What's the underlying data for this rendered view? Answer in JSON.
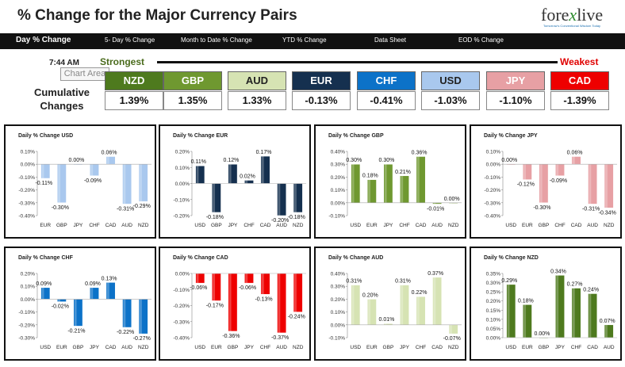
{
  "header": {
    "title": "% Change for the Major Currency Pairs",
    "logo_left": "fore",
    "logo_x": "x",
    "logo_right": "live",
    "logo_tagline": "Tomorrow's Conventional Wisdom Today"
  },
  "nav": {
    "items": [
      {
        "label": "Day % Change"
      },
      {
        "label": "5- Day % Change"
      },
      {
        "label": "Month to Date % Change"
      },
      {
        "label": "YTD % Change"
      },
      {
        "label": "Data Sheet"
      },
      {
        "label": "EOD % Change"
      }
    ]
  },
  "summary": {
    "time": "7:44 AM",
    "strongest_label": "Strongest",
    "weakest_label": "Weakest",
    "tooltip": "Chart Area",
    "cumulative_line1": "Cumulative",
    "cumulative_line2": "Changes",
    "currencies": [
      {
        "code": "NZD",
        "value": "1.39%",
        "color": "#4e7a1e",
        "text_color": "#ffffff"
      },
      {
        "code": "GBP",
        "value": "1.35%",
        "color": "#6f9830",
        "text_color": "#ffffff"
      },
      {
        "code": "AUD",
        "value": "1.33%",
        "color": "#d6e3b3",
        "text_color": "#222222"
      },
      {
        "code": "EUR",
        "value": "-0.13%",
        "color": "#15304f",
        "text_color": "#ffffff"
      },
      {
        "code": "CHF",
        "value": "-0.41%",
        "color": "#0c72c8",
        "text_color": "#ffffff"
      },
      {
        "code": "USD",
        "value": "-1.03%",
        "color": "#a9c8ee",
        "text_color": "#222222"
      },
      {
        "code": "JPY",
        "value": "-1.10%",
        "color": "#e7a0a4",
        "text_color": "#ffffff"
      },
      {
        "code": "CAD",
        "value": "-1.39%",
        "color": "#ee0000",
        "text_color": "#ffffff"
      }
    ]
  },
  "chart_data": [
    {
      "type": "bar",
      "title": "Daily % Change USD",
      "categories": [
        "EUR",
        "GBP",
        "JPY",
        "CHF",
        "CAD",
        "AUD",
        "NZD"
      ],
      "values": [
        -0.11,
        -0.3,
        0.0,
        -0.09,
        0.06,
        -0.31,
        -0.29
      ],
      "labels": [
        "-0.11%",
        "-0.30%",
        "0.00%",
        "-0.09%",
        "0.06%",
        "-0.31%",
        "-0.29%"
      ],
      "ylim": [
        -0.4,
        0.1
      ],
      "ticks": [
        0.1,
        0.0,
        -0.1,
        -0.2,
        -0.3,
        -0.4
      ],
      "tick_labels": [
        "0.10%",
        "0.00%",
        "-0.10%",
        "-0.20%",
        "-0.30%",
        "-0.40%"
      ],
      "color": "#a9c8ee"
    },
    {
      "type": "bar",
      "title": "Daily % Change EUR",
      "categories": [
        "USD",
        "GBP",
        "JPY",
        "CHF",
        "CAD",
        "AUD",
        "NZD"
      ],
      "values": [
        0.11,
        -0.18,
        0.12,
        0.02,
        0.17,
        -0.2,
        -0.18
      ],
      "labels": [
        "0.11%",
        "-0.18%",
        "0.12%",
        "0.02%",
        "0.17%",
        "-0.20%",
        "-0.18%"
      ],
      "ylim": [
        -0.2,
        0.2
      ],
      "ticks": [
        0.2,
        0.1,
        0.0,
        -0.1,
        -0.2
      ],
      "tick_labels": [
        "0.20%",
        "0.10%",
        "0.00%",
        "-0.10%",
        "-0.20%"
      ],
      "color": "#15304f"
    },
    {
      "type": "bar",
      "title": "Daily % Change GBP",
      "categories": [
        "USD",
        "EUR",
        "JPY",
        "CHF",
        "CAD",
        "AUD",
        "NZD"
      ],
      "values": [
        0.3,
        0.18,
        0.3,
        0.21,
        0.36,
        -0.01,
        0.0
      ],
      "labels": [
        "0.30%",
        "0.18%",
        "0.30%",
        "0.21%",
        "0.36%",
        "-0.01%",
        "0.00%"
      ],
      "ylim": [
        -0.1,
        0.4
      ],
      "ticks": [
        0.4,
        0.3,
        0.2,
        0.1,
        0.0,
        -0.1
      ],
      "tick_labels": [
        "0.40%",
        "0.30%",
        "0.20%",
        "0.10%",
        "0.00%",
        "-0.10%"
      ],
      "color": "#6f9830"
    },
    {
      "type": "bar",
      "title": "Daily % Change JPY",
      "categories": [
        "USD",
        "EUR",
        "GBP",
        "CHF",
        "CAD",
        "AUD",
        "NZD"
      ],
      "values": [
        0.0,
        -0.12,
        -0.3,
        -0.09,
        0.06,
        -0.31,
        -0.34
      ],
      "labels": [
        "0.00%",
        "-0.12%",
        "-0.30%",
        "-0.09%",
        "0.06%",
        "-0.31%",
        "-0.34%"
      ],
      "ylim": [
        -0.4,
        0.1
      ],
      "ticks": [
        0.1,
        0.0,
        -0.1,
        -0.2,
        -0.3,
        -0.4
      ],
      "tick_labels": [
        "0.10%",
        "0.00%",
        "-0.10%",
        "-0.20%",
        "-0.30%",
        "-0.40%"
      ],
      "color": "#e7a0a4"
    },
    {
      "type": "bar",
      "title": "Daily % Change CHF",
      "categories": [
        "USD",
        "EUR",
        "GBP",
        "JPY",
        "CAD",
        "AUD",
        "NZD"
      ],
      "values": [
        0.09,
        -0.02,
        -0.21,
        0.09,
        0.13,
        -0.22,
        -0.27
      ],
      "labels": [
        "0.09%",
        "-0.02%",
        "-0.21%",
        "0.09%",
        "0.13%",
        "-0.22%",
        "-0.27%"
      ],
      "ylim": [
        -0.3,
        0.2
      ],
      "ticks": [
        0.2,
        0.1,
        0.0,
        -0.1,
        -0.2,
        -0.3
      ],
      "tick_labels": [
        "0.20%",
        "0.10%",
        "0.00%",
        "-0.10%",
        "-0.20%",
        "-0.30%"
      ],
      "color": "#0c72c8"
    },
    {
      "type": "bar",
      "title": "Daily % Change CAD",
      "categories": [
        "USD",
        "EUR",
        "GBP",
        "JPY",
        "CHF",
        "AUD",
        "NZD"
      ],
      "values": [
        -0.06,
        -0.17,
        -0.36,
        -0.06,
        -0.13,
        -0.37,
        -0.24
      ],
      "labels": [
        "-0.06%",
        "-0.17%",
        "-0.36%",
        "-0.06%",
        "-0.13%",
        "-0.37%",
        "-0.24%"
      ],
      "ylim": [
        -0.4,
        0.0
      ],
      "ticks": [
        0.0,
        -0.1,
        -0.2,
        -0.3,
        -0.4
      ],
      "tick_labels": [
        "0.00%",
        "-0.10%",
        "-0.20%",
        "-0.30%",
        "-0.40%"
      ],
      "color": "#ee0000"
    },
    {
      "type": "bar",
      "title": "Daily % Change AUD",
      "categories": [
        "USD",
        "EUR",
        "GBP",
        "JPY",
        "CHF",
        "CAD",
        "NZD"
      ],
      "values": [
        0.31,
        0.2,
        0.01,
        0.31,
        0.22,
        0.37,
        -0.07
      ],
      "labels": [
        "0.31%",
        "0.20%",
        "0.01%",
        "0.31%",
        "0.22%",
        "0.37%",
        "-0.07%"
      ],
      "ylim": [
        -0.1,
        0.4
      ],
      "ticks": [
        0.4,
        0.3,
        0.2,
        0.1,
        0.0,
        -0.1
      ],
      "tick_labels": [
        "0.40%",
        "0.30%",
        "0.20%",
        "0.10%",
        "0.00%",
        "-0.10%"
      ],
      "color": "#d6e3b3"
    },
    {
      "type": "bar",
      "title": "Daily % Change NZD",
      "categories": [
        "USD",
        "EUR",
        "GBP",
        "JPY",
        "CHF",
        "CAD",
        "AUD"
      ],
      "values": [
        0.29,
        0.18,
        0.0,
        0.34,
        0.27,
        0.24,
        0.07
      ],
      "labels": [
        "0.29%",
        "0.18%",
        "0.00%",
        "0.34%",
        "0.27%",
        "0.24%",
        "0.07%"
      ],
      "ylim": [
        0.0,
        0.35
      ],
      "ticks": [
        0.35,
        0.3,
        0.25,
        0.2,
        0.15,
        0.1,
        0.05,
        0.0
      ],
      "tick_labels": [
        "0.35%",
        "0.30%",
        "0.25%",
        "0.20%",
        "0.15%",
        "0.10%",
        "0.05%",
        "0.00%"
      ],
      "color": "#4e7a1e"
    }
  ]
}
